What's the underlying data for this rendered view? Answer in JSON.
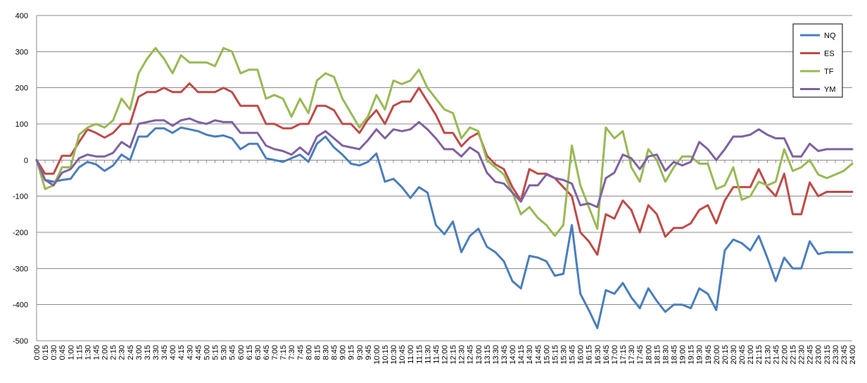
{
  "chart_data": {
    "type": "line",
    "title": "",
    "xlabel": "",
    "ylabel": "",
    "ylim": [
      -500,
      400
    ],
    "yticks": [
      400,
      300,
      200,
      100,
      0,
      -100,
      -200,
      -300,
      -400,
      -500
    ],
    "grid": true,
    "legend_position": "top-right",
    "x": [
      "0:00",
      "0:15",
      "0:30",
      "0:45",
      "1:00",
      "1:15",
      "1:30",
      "1:45",
      "2:00",
      "2:15",
      "2:30",
      "2:45",
      "3:00",
      "3:15",
      "3:30",
      "3:45",
      "4:00",
      "4:15",
      "4:30",
      "4:45",
      "5:00",
      "5:15",
      "5:30",
      "5:45",
      "6:00",
      "6:15",
      "6:30",
      "6:45",
      "7:00",
      "7:15",
      "7:30",
      "7:45",
      "8:00",
      "8:15",
      "8:30",
      "8:45",
      "9:00",
      "9:15",
      "9:30",
      "9:45",
      "10:00",
      "10:15",
      "10:30",
      "10:45",
      "11:00",
      "11:15",
      "11:30",
      "11:45",
      "12:00",
      "12:15",
      "12:30",
      "12:45",
      "13:00",
      "13:15",
      "13:30",
      "13:45",
      "14:00",
      "14:15",
      "14:30",
      "14:45",
      "15:00",
      "15:15",
      "15:30",
      "15:45",
      "16:00",
      "16:15",
      "16:30",
      "16:45",
      "17:00",
      "17:15",
      "17:30",
      "17:45",
      "18:00",
      "18:15",
      "18:30",
      "18:45",
      "19:00",
      "19:15",
      "19:30",
      "19:45",
      "20:00",
      "20:15",
      "20:30",
      "20:45",
      "21:00",
      "21:15",
      "21:30",
      "21:45",
      "22:00",
      "22:15",
      "22:30",
      "22:45",
      "23:00",
      "23:15",
      "23:30",
      "23:45",
      "24:00"
    ],
    "series": [
      {
        "name": "NQ",
        "color": "#4a7ebb",
        "values": [
          0,
          -55,
          -60,
          -55,
          -52,
          -20,
          -5,
          -12,
          -30,
          -15,
          15,
          0,
          65,
          65,
          88,
          88,
          75,
          90,
          85,
          80,
          70,
          65,
          68,
          60,
          30,
          45,
          45,
          5,
          0,
          -5,
          5,
          15,
          -5,
          45,
          65,
          35,
          15,
          -10,
          -15,
          -5,
          18,
          -60,
          -52,
          -75,
          -105,
          -75,
          -90,
          -180,
          -205,
          -170,
          -255,
          -210,
          -190,
          -240,
          -255,
          -280,
          -335,
          -355,
          -265,
          -270,
          -280,
          -320,
          -315,
          -180,
          -370,
          -415,
          -465,
          -360,
          -370,
          -340,
          -380,
          -410,
          -355,
          -390,
          -420,
          -400,
          -400,
          -410,
          -355,
          -370,
          -415,
          -250,
          -220,
          -230,
          -250,
          -210,
          -270,
          -335,
          -270,
          -300,
          -300,
          -225,
          -260,
          -255,
          -255,
          -255,
          -255
        ]
      },
      {
        "name": "ES",
        "color": "#be4b48",
        "values": [
          0,
          -38,
          -38,
          12,
          12,
          50,
          85,
          75,
          62,
          75,
          100,
          100,
          175,
          188,
          188,
          200,
          188,
          188,
          212,
          188,
          188,
          188,
          200,
          188,
          150,
          150,
          150,
          100,
          100,
          88,
          88,
          100,
          100,
          150,
          150,
          138,
          100,
          100,
          75,
          112,
          138,
          100,
          150,
          162,
          162,
          200,
          162,
          125,
          75,
          75,
          38,
          62,
          75,
          12,
          -12,
          -25,
          -75,
          -112,
          -25,
          -38,
          -38,
          -50,
          -75,
          -100,
          -200,
          -225,
          -262,
          -150,
          -162,
          -112,
          -138,
          -200,
          -125,
          -150,
          -212,
          -188,
          -188,
          -175,
          -138,
          -125,
          -175,
          -112,
          -75,
          -75,
          -75,
          -25,
          -75,
          -100,
          -38,
          -150,
          -150,
          -62,
          -100,
          -88,
          -88,
          -88,
          -88
        ]
      },
      {
        "name": "TF",
        "color": "#98b954",
        "values": [
          0,
          -80,
          -70,
          -20,
          -20,
          70,
          90,
          100,
          90,
          110,
          170,
          140,
          240,
          280,
          310,
          280,
          240,
          290,
          270,
          270,
          270,
          260,
          310,
          300,
          240,
          250,
          250,
          170,
          180,
          170,
          120,
          170,
          130,
          220,
          240,
          230,
          170,
          130,
          90,
          120,
          180,
          140,
          220,
          210,
          220,
          250,
          200,
          170,
          140,
          130,
          60,
          90,
          80,
          0,
          -20,
          -40,
          -90,
          -150,
          -130,
          -160,
          -180,
          -210,
          -180,
          40,
          -70,
          -130,
          -190,
          90,
          60,
          80,
          -20,
          -60,
          30,
          0,
          -60,
          -20,
          10,
          10,
          -10,
          -10,
          -80,
          -70,
          -20,
          -110,
          -100,
          -60,
          -70,
          -60,
          30,
          -30,
          -20,
          0,
          -40,
          -50,
          -40,
          -30,
          -10
        ]
      },
      {
        "name": "YM",
        "color": "#7e62a1",
        "values": [
          0,
          -55,
          -70,
          -35,
          -25,
          5,
          15,
          10,
          10,
          20,
          50,
          35,
          100,
          105,
          110,
          110,
          95,
          110,
          115,
          105,
          100,
          110,
          105,
          105,
          75,
          75,
          75,
          40,
          30,
          25,
          15,
          35,
          15,
          65,
          80,
          60,
          40,
          35,
          30,
          55,
          85,
          60,
          85,
          80,
          85,
          105,
          85,
          60,
          30,
          30,
          10,
          35,
          20,
          -35,
          -60,
          -65,
          -90,
          -115,
          -70,
          -70,
          -40,
          -50,
          -55,
          -65,
          -125,
          -120,
          -130,
          -50,
          -35,
          15,
          5,
          -25,
          10,
          15,
          -30,
          -5,
          -15,
          -5,
          50,
          30,
          0,
          30,
          65,
          65,
          70,
          85,
          70,
          60,
          60,
          10,
          10,
          45,
          25,
          30,
          30,
          30,
          30
        ]
      }
    ]
  }
}
